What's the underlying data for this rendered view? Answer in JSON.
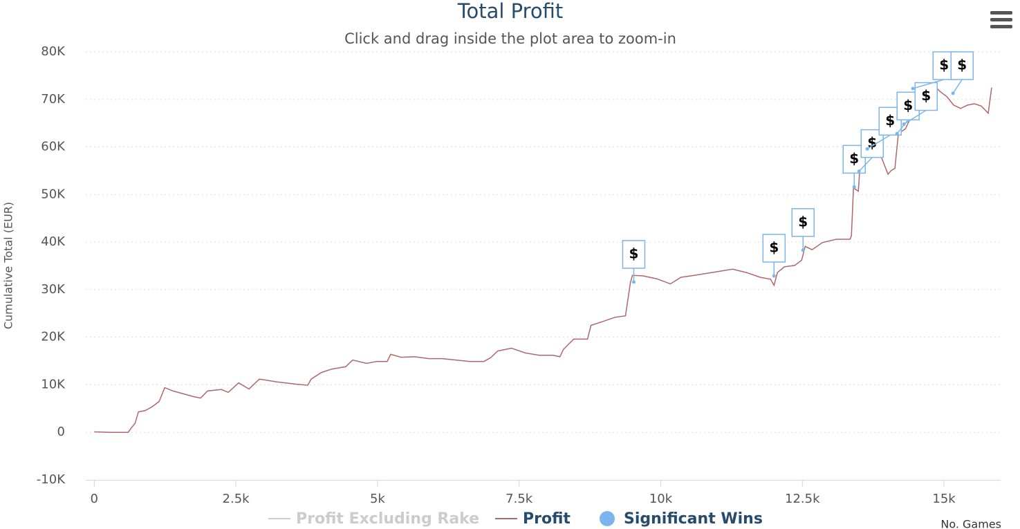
{
  "chart_data": {
    "type": "line",
    "title": "Total Profit",
    "subtitle": "Click and drag inside the plot area to zoom-in",
    "y_label": "Cumulative Total (EUR)",
    "x_label": "No. Games",
    "xlim": [
      -150,
      16000
    ],
    "xticks": [
      0,
      {
        "value": 2500,
        "label": "2.5k"
      },
      {
        "value": 5000,
        "label": "5k"
      },
      {
        "value": 7500,
        "label": "7.5k"
      },
      {
        "value": 10000,
        "label": "10k"
      },
      {
        "value": 12500,
        "label": "12.5k"
      },
      {
        "value": 15000,
        "label": "15k"
      }
    ],
    "ylim": [
      -10000,
      80000
    ],
    "yticks": [
      {
        "value": -10000,
        "label": "-10K"
      },
      0,
      {
        "value": 10000,
        "label": "10K"
      },
      {
        "value": 20000,
        "label": "20K"
      },
      {
        "value": 30000,
        "label": "30K"
      },
      {
        "value": 40000,
        "label": "40K"
      },
      {
        "value": 50000,
        "label": "50K"
      },
      {
        "value": 60000,
        "label": "60K"
      },
      {
        "value": 70000,
        "label": "70K"
      },
      {
        "value": 80000,
        "label": "80K"
      }
    ],
    "grid": true,
    "series": [
      {
        "name": "Profit Excluding Rake",
        "type": "line",
        "color": "#cccccc",
        "visible": false
      },
      {
        "name": "Profit",
        "type": "line",
        "color": "#b06767",
        "x": [
          0,
          293,
          598,
          659,
          720,
          780,
          902,
          1024,
          1146,
          1244,
          1390,
          1512,
          1756,
          1878,
          2000,
          2244,
          2366,
          2549,
          2732,
          2915,
          3220,
          3585,
          3768,
          3829,
          4012,
          4195,
          4439,
          4561,
          4805,
          4988,
          5171,
          5232,
          5415,
          5659,
          5902,
          6146,
          6390,
          6634,
          6878,
          7000,
          7122,
          7366,
          7610,
          7854,
          8098,
          8220,
          8280,
          8463,
          8707,
          8768,
          8951,
          9195,
          9378,
          9463,
          9500,
          9683,
          9927,
          10171,
          10354,
          10537,
          10902,
          11268,
          11512,
          11756,
          11939,
          12000,
          12061,
          12183,
          12366,
          12488,
          12549,
          12671,
          12854,
          13098,
          13341,
          13366,
          13402,
          13488,
          13524,
          13707,
          13768,
          13890,
          14012,
          14073,
          14134,
          14195,
          14317,
          14439,
          14500,
          14561,
          14683,
          14805,
          14927,
          15049,
          15171,
          15293,
          15415,
          15537,
          15659,
          15780,
          15841
        ],
        "values": [
          100,
          0,
          0,
          1000,
          1900,
          4300,
          4600,
          5400,
          6500,
          9400,
          8700,
          8300,
          7500,
          7200,
          8700,
          9000,
          8400,
          10400,
          9100,
          11200,
          10600,
          10100,
          9900,
          11200,
          12600,
          13300,
          13800,
          15200,
          14500,
          14900,
          14900,
          16400,
          15800,
          15900,
          15500,
          15500,
          15200,
          14900,
          14900,
          15700,
          17100,
          17700,
          16700,
          16200,
          16200,
          15900,
          17400,
          19600,
          19600,
          22500,
          23200,
          24200,
          24500,
          31400,
          33000,
          32900,
          32300,
          31200,
          32600,
          32900,
          33600,
          34300,
          33600,
          32600,
          32200,
          30900,
          33600,
          34800,
          35100,
          36200,
          39100,
          38400,
          39900,
          40600,
          40600,
          41300,
          51400,
          50700,
          57200,
          60900,
          59700,
          58000,
          54300,
          55100,
          55500,
          62800,
          63800,
          66700,
          72500,
          72000,
          73500,
          73200,
          71700,
          70600,
          68800,
          68100,
          68800,
          69100,
          68600,
          67100,
          72500
        ]
      },
      {
        "name": "Significant Wins",
        "type": "scatter",
        "color": "#7cb5ec",
        "x": [
          9524,
          12000,
          12512,
          13415,
          13500,
          13646,
          14171,
          14293,
          14451,
          15159
        ],
        "values": [
          31600,
          32900,
          38300,
          51600,
          54900,
          59600,
          62800,
          64800,
          72300,
          71300
        ],
        "labels": [
          "$",
          "$",
          "$",
          "$",
          "$",
          "$",
          "$",
          "$",
          "$",
          "$"
        ]
      }
    ]
  }
}
